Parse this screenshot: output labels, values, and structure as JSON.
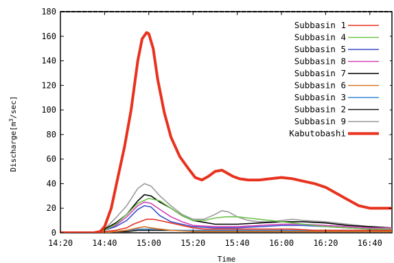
{
  "chart_data": {
    "type": "line",
    "title": "",
    "xlabel": "Time",
    "ylabel": "Discharge[m3/sec]",
    "ylabel_parts": {
      "before": "Discharge[m",
      "sup": "3",
      "after": "/sec]"
    },
    "xlim": [
      "14:20",
      "16:50"
    ],
    "ylim": [
      0,
      180
    ],
    "x_ticks": [
      "14:20",
      "14:40",
      "15:00",
      "15:20",
      "15:40",
      "16:00",
      "16:20",
      "16:40"
    ],
    "y_ticks": [
      "0",
      "20",
      "40",
      "60",
      "80",
      "100",
      "120",
      "140",
      "160",
      "180"
    ],
    "grid": false,
    "legend_position": "top-right",
    "series": [
      {
        "name": "Subbasin 1",
        "color": "#e8321e",
        "width": 1.6,
        "x": [
          "14:20",
          "14:30",
          "14:35",
          "14:40",
          "14:45",
          "14:50",
          "14:53",
          "14:56",
          "14:59",
          "15:02",
          "15:05",
          "15:10",
          "15:15",
          "15:20",
          "15:25",
          "15:30",
          "15:35",
          "15:40",
          "15:45",
          "15:50",
          "15:55",
          "16:00",
          "16:05",
          "16:10",
          "16:15",
          "16:20",
          "16:25",
          "16:30",
          "16:35",
          "16:40",
          "16:45",
          "16:50"
        ],
        "y": [
          0,
          0,
          0,
          1,
          2,
          4,
          7,
          9,
          11,
          11,
          10,
          8,
          6,
          4,
          3,
          3,
          3,
          3,
          3,
          3,
          3,
          3,
          3,
          2.5,
          2,
          2,
          2,
          2,
          2,
          2,
          2,
          2
        ]
      },
      {
        "name": "Subbasin 4",
        "color": "#6cc24a",
        "width": 1.6,
        "x": [
          "14:20",
          "14:35",
          "14:40",
          "14:45",
          "14:50",
          "14:55",
          "15:00",
          "15:05",
          "15:10",
          "15:15",
          "15:20",
          "15:25",
          "15:30",
          "15:35",
          "15:40",
          "15:45",
          "15:50",
          "15:55",
          "16:00",
          "16:05",
          "16:10",
          "16:20",
          "16:30",
          "16:40",
          "16:50"
        ],
        "y": [
          0,
          0,
          2,
          7,
          15,
          24,
          28,
          26,
          20,
          14,
          10,
          10,
          12,
          13,
          13,
          12,
          11,
          10,
          9,
          8,
          7,
          5,
          4,
          3,
          3
        ]
      },
      {
        "name": "Subbasin 5",
        "color": "#3a4fcc",
        "width": 1.6,
        "x": [
          "14:20",
          "14:35",
          "14:40",
          "14:45",
          "14:50",
          "14:55",
          "14:58",
          "15:01",
          "15:05",
          "15:10",
          "15:15",
          "15:20",
          "15:30",
          "15:40",
          "15:50",
          "16:00",
          "16:10",
          "16:20",
          "16:30",
          "16:40",
          "16:50"
        ],
        "y": [
          0,
          0,
          2,
          5,
          10,
          19,
          22,
          21,
          14,
          9,
          7,
          5,
          4,
          4,
          5,
          6,
          6,
          5,
          4,
          3,
          3
        ]
      },
      {
        "name": "Subbasin 8",
        "color": "#d43fb6",
        "width": 1.6,
        "x": [
          "14:20",
          "14:35",
          "14:40",
          "14:45",
          "14:50",
          "14:55",
          "14:58",
          "15:01",
          "15:05",
          "15:10",
          "15:15",
          "15:20",
          "15:30",
          "15:40",
          "15:50",
          "16:00",
          "16:10",
          "16:20",
          "16:30",
          "16:40",
          "16:50"
        ],
        "y": [
          0,
          0,
          2,
          6,
          13,
          22,
          25,
          24,
          19,
          13,
          9,
          6,
          5,
          5,
          6,
          7,
          7,
          6,
          5,
          4,
          4
        ]
      },
      {
        "name": "Subbasin 7",
        "color": "#000000",
        "width": 1.6,
        "x": [
          "14:20",
          "14:35",
          "14:40",
          "14:45",
          "14:50",
          "14:55",
          "14:58",
          "15:01",
          "15:05",
          "15:10",
          "15:15",
          "15:20",
          "15:30",
          "15:40",
          "15:50",
          "16:00",
          "16:10",
          "16:20",
          "16:30",
          "16:40",
          "16:50"
        ],
        "y": [
          0,
          0,
          3,
          8,
          15,
          26,
          31,
          30,
          25,
          20,
          14,
          10,
          7,
          7,
          8,
          9,
          9,
          8,
          6,
          5,
          4
        ]
      },
      {
        "name": "Subbasin 6",
        "color": "#d9751e",
        "width": 1.6,
        "x": [
          "14:20",
          "14:40",
          "14:45",
          "14:50",
          "14:55",
          "14:58",
          "15:01",
          "15:05",
          "15:10",
          "15:20",
          "15:40",
          "16:00",
          "16:20",
          "16:50"
        ],
        "y": [
          0,
          0,
          1,
          2,
          4,
          5,
          4,
          3,
          2,
          1,
          1,
          1,
          1,
          1
        ]
      },
      {
        "name": "Subbasin 3",
        "color": "#3c8ad6",
        "width": 1.6,
        "x": [
          "14:20",
          "14:40",
          "14:45",
          "14:50",
          "14:55",
          "15:00",
          "15:05",
          "15:10",
          "15:20",
          "15:40",
          "16:00",
          "16:20",
          "16:50"
        ],
        "y": [
          0,
          0,
          1,
          2,
          3,
          3,
          3,
          2,
          2,
          2,
          2,
          2,
          2
        ]
      },
      {
        "name": "Subbasin 2",
        "color": "#111111",
        "width": 1.6,
        "x": [
          "14:20",
          "14:40",
          "14:45",
          "14:50",
          "14:55",
          "15:00",
          "15:05",
          "15:10",
          "15:20",
          "15:40",
          "16:00",
          "16:20",
          "16:50"
        ],
        "y": [
          0,
          0,
          1,
          1,
          2,
          2,
          2,
          2,
          1.5,
          1.5,
          1.5,
          1.5,
          1.5
        ]
      },
      {
        "name": "Subbasin 9",
        "color": "#999999",
        "width": 1.6,
        "x": [
          "14:20",
          "14:35",
          "14:40",
          "14:45",
          "14:50",
          "14:55",
          "14:58",
          "15:01",
          "15:05",
          "15:10",
          "15:15",
          "15:20",
          "15:25",
          "15:30",
          "15:33",
          "15:36",
          "15:40",
          "15:45",
          "15:50",
          "15:55",
          "16:00",
          "16:05",
          "16:10",
          "16:20",
          "16:30",
          "16:40",
          "16:50"
        ],
        "y": [
          0,
          0,
          3,
          12,
          22,
          36,
          40,
          38,
          30,
          22,
          15,
          11,
          11,
          15,
          18,
          17,
          13,
          10,
          9,
          9,
          10,
          11,
          10,
          9,
          7,
          5,
          4
        ]
      },
      {
        "name": "Kabutobashi",
        "color": "#e8321e",
        "width": 4,
        "x": [
          "14:20",
          "14:35",
          "14:38",
          "14:40",
          "14:43",
          "14:46",
          "14:49",
          "14:52",
          "14:55",
          "14:57",
          "14:59",
          "15:00",
          "15:02",
          "15:04",
          "15:07",
          "15:10",
          "15:14",
          "15:18",
          "15:21",
          "15:24",
          "15:27",
          "15:30",
          "15:33",
          "15:35",
          "15:38",
          "15:41",
          "15:45",
          "15:50",
          "15:55",
          "16:00",
          "16:05",
          "16:10",
          "16:15",
          "16:20",
          "16:25",
          "16:30",
          "16:35",
          "16:40",
          "16:45",
          "16:50"
        ],
        "y": [
          0,
          0,
          1,
          5,
          20,
          45,
          70,
          100,
          140,
          158,
          163,
          162,
          150,
          125,
          98,
          78,
          62,
          52,
          45,
          43,
          46,
          50,
          51,
          49,
          46,
          44,
          43,
          43,
          44,
          45,
          44,
          42,
          40,
          37,
          32,
          27,
          22,
          20,
          20,
          20
        ]
      }
    ]
  }
}
